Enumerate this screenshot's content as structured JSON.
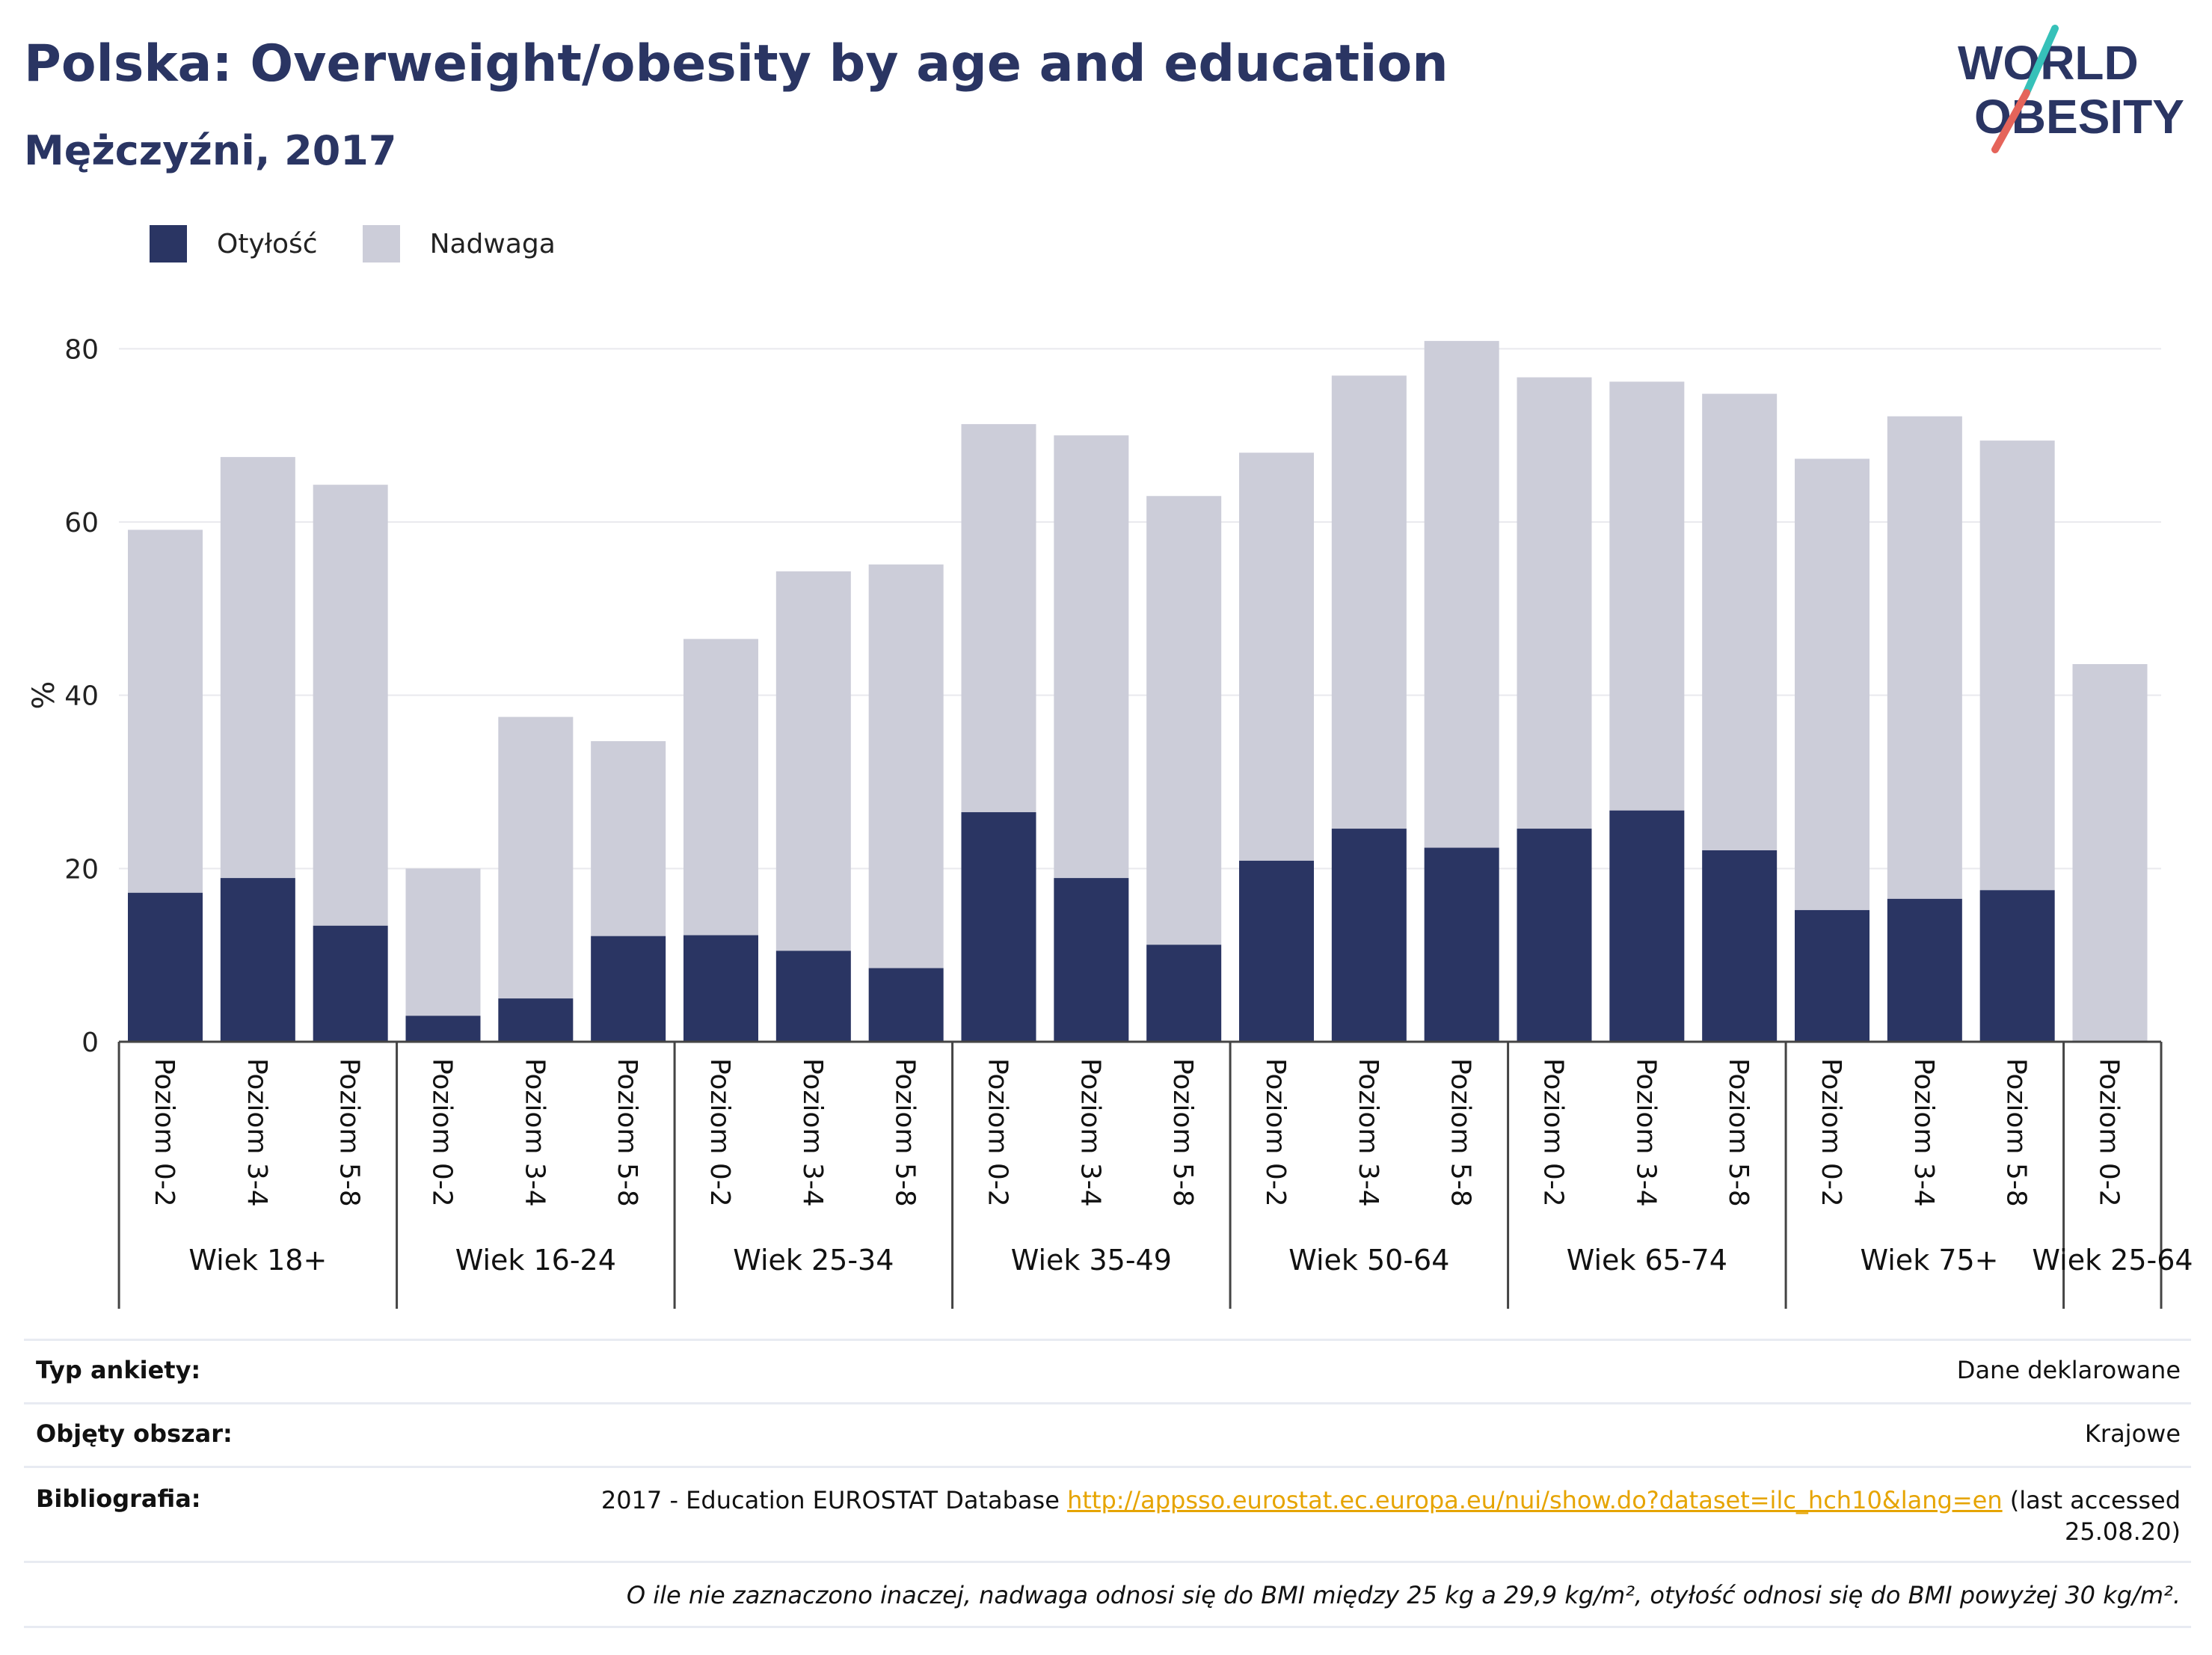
{
  "header": {
    "title": "Polska: Overweight/obesity by age and education",
    "subtitle": "Mężczyźni, 2017",
    "logo_line1": "WORLD",
    "logo_line2": "OBESITY"
  },
  "colors": {
    "obesity": "#2a3563",
    "overweight": "#cccdd9",
    "accent_teal": "#36c1b9",
    "accent_red": "#e5645a",
    "link": "#e6a400"
  },
  "chart_data": {
    "type": "bar",
    "stacked": true,
    "ylabel": "%",
    "ylim": [
      0,
      84
    ],
    "yticks": [
      0,
      20,
      40,
      60,
      80
    ],
    "grid": true,
    "legend_position": "top-left",
    "categories": [
      {
        "group": "Wiek 18+",
        "label": "Poziom 0-2"
      },
      {
        "group": "Wiek 18+",
        "label": "Poziom 3-4"
      },
      {
        "group": "Wiek 18+",
        "label": "Poziom 5-8"
      },
      {
        "group": "Wiek 16-24",
        "label": "Poziom 0-2"
      },
      {
        "group": "Wiek 16-24",
        "label": "Poziom 3-4"
      },
      {
        "group": "Wiek 16-24",
        "label": "Poziom 5-8"
      },
      {
        "group": "Wiek 25-34",
        "label": "Poziom 0-2"
      },
      {
        "group": "Wiek 25-34",
        "label": "Poziom 3-4"
      },
      {
        "group": "Wiek 25-34",
        "label": "Poziom 5-8"
      },
      {
        "group": "Wiek 35-49",
        "label": "Poziom 0-2"
      },
      {
        "group": "Wiek 35-49",
        "label": "Poziom 3-4"
      },
      {
        "group": "Wiek 35-49",
        "label": "Poziom 5-8"
      },
      {
        "group": "Wiek 50-64",
        "label": "Poziom 0-2"
      },
      {
        "group": "Wiek 50-64",
        "label": "Poziom 3-4"
      },
      {
        "group": "Wiek 50-64",
        "label": "Poziom 5-8"
      },
      {
        "group": "Wiek 65-74",
        "label": "Poziom 0-2"
      },
      {
        "group": "Wiek 65-74",
        "label": "Poziom 3-4"
      },
      {
        "group": "Wiek 65-74",
        "label": "Poziom 5-8"
      },
      {
        "group": "Wiek 75+",
        "label": "Poziom 0-2"
      },
      {
        "group": "Wiek 75+",
        "label": "Poziom 3-4"
      },
      {
        "group": "Wiek 75+",
        "label": "Poziom 5-8"
      },
      {
        "group": "Wiek 25-64",
        "label": "Poziom 0-2"
      }
    ],
    "groups": [
      "Wiek 18+",
      "Wiek 16-24",
      "Wiek 25-34",
      "Wiek 35-49",
      "Wiek 50-64",
      "Wiek 65-74",
      "Wiek 75+",
      "Wiek 25-64"
    ],
    "series": [
      {
        "name": "Otyłość",
        "values": [
          17.2,
          18.9,
          13.4,
          3.0,
          5.0,
          12.2,
          12.3,
          10.5,
          8.5,
          26.5,
          18.9,
          11.2,
          20.9,
          24.6,
          22.4,
          24.6,
          26.7,
          22.1,
          15.2,
          16.5,
          17.5,
          0
        ]
      },
      {
        "name": "Nadwaga",
        "values": [
          41.9,
          48.6,
          50.9,
          17.0,
          32.5,
          22.5,
          34.2,
          43.8,
          46.6,
          44.8,
          51.1,
          51.8,
          47.1,
          52.3,
          58.5,
          52.1,
          49.5,
          52.7,
          52.1,
          55.7,
          51.9,
          43.6
        ]
      }
    ]
  },
  "footer": {
    "survey_label": "Typ ankiety:",
    "survey_value": "Dane deklarowane",
    "area_label": "Objęty obszar:",
    "area_value": "Krajowe",
    "bib_label": "Bibliografia:",
    "bib_text": "2017 - Education EUROSTAT Database",
    "bib_link": "http://appsso.eurostat.ec.europa.eu/nui/show.do?dataset=ilc_hch10&lang=en",
    "bib_accessed": "(last accessed",
    "bib_date": "25.08.20)",
    "note": "O ile nie zaznaczono inaczej, nadwaga odnosi się do BMI między 25 kg a 29,9 kg/m², otyłość odnosi się do BMI powyżej 30 kg/m²."
  }
}
